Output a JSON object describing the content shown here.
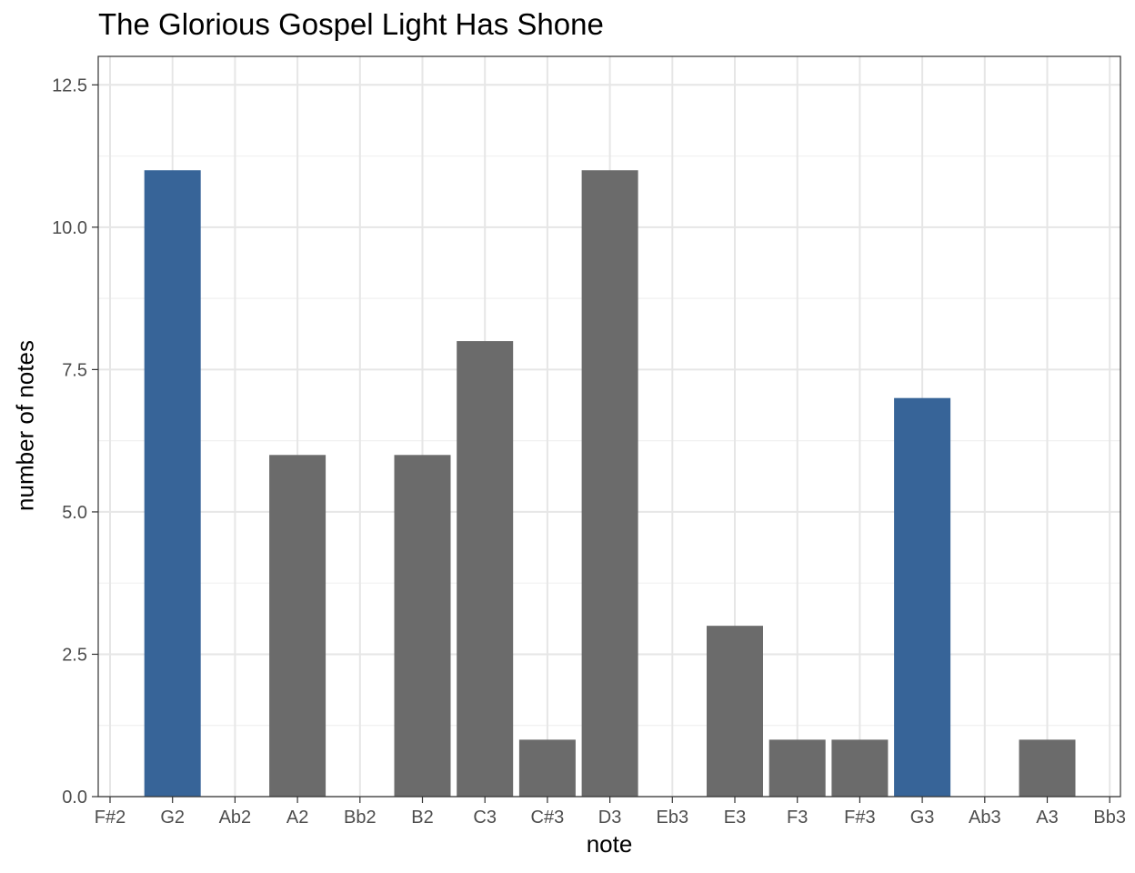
{
  "chart_data": {
    "type": "bar",
    "title": "The Glorious Gospel Light Has Shone",
    "xlabel": "note",
    "ylabel": "number of notes",
    "categories": [
      "F#2",
      "G2",
      "Ab2",
      "A2",
      "Bb2",
      "B2",
      "C3",
      "C#3",
      "D3",
      "Eb3",
      "E3",
      "F3",
      "F#3",
      "G3",
      "Ab3",
      "A3",
      "Bb3"
    ],
    "values": [
      0,
      11,
      0,
      6,
      0,
      6,
      8,
      1,
      11,
      0,
      3,
      1,
      1,
      7,
      0,
      1,
      0
    ],
    "highlighted": [
      "G2",
      "G3"
    ],
    "colors": {
      "highlight": "#376498",
      "default": "#6b6b6b",
      "grid": "#e6e6e6",
      "border": "#333333"
    },
    "ylim": [
      0,
      13
    ],
    "yticks": [
      "0.0",
      "2.5",
      "5.0",
      "7.5",
      "10.0",
      "12.5"
    ],
    "grid": true,
    "legend": "none"
  }
}
